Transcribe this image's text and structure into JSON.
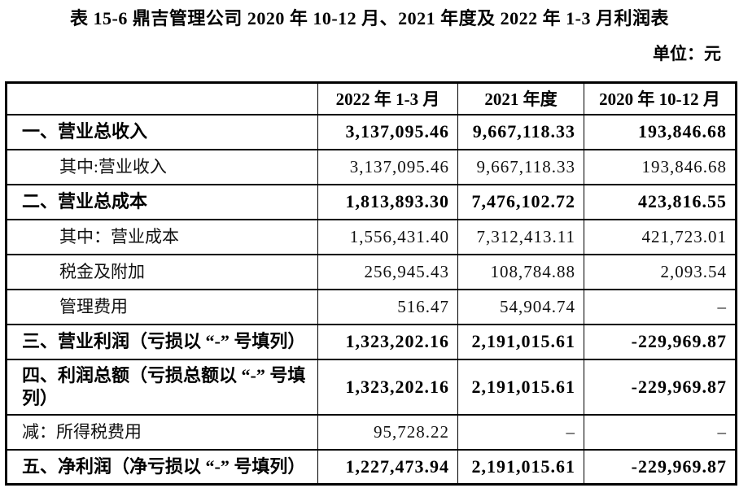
{
  "title": "表 15-6 鼎吉管理公司 2020 年 10-12 月、2021 年度及 2022 年 1-3 月利润表",
  "unit_label": "单位：元",
  "table": {
    "columns": [
      "",
      "2022 年 1-3 月",
      "2021 年度",
      "2020 年 10-12 月"
    ],
    "rows": [
      {
        "label": "一、营业总收入",
        "style": "section",
        "indent": false,
        "values": [
          "3,137,095.46",
          "9,667,118.33",
          "193,846.68"
        ]
      },
      {
        "label": "其中:营业收入",
        "style": "item",
        "indent": true,
        "values": [
          "3,137,095.46",
          "9,667,118.33",
          "193,846.68"
        ]
      },
      {
        "label": "二、营业总成本",
        "style": "section",
        "indent": false,
        "values": [
          "1,813,893.30",
          "7,476,102.72",
          "423,816.55"
        ]
      },
      {
        "label": "其中：营业成本",
        "style": "item",
        "indent": true,
        "values": [
          "1,556,431.40",
          "7,312,413.11",
          "421,723.01"
        ]
      },
      {
        "label": "税金及附加",
        "style": "item",
        "indent": true,
        "values": [
          "256,945.43",
          "108,784.88",
          "2,093.54"
        ]
      },
      {
        "label": "管理费用",
        "style": "item",
        "indent": true,
        "values": [
          "516.47",
          "54,904.74",
          "–"
        ]
      },
      {
        "label": "三、营业利润（亏损以 “-” 号填列）",
        "style": "section",
        "indent": false,
        "values": [
          "1,323,202.16",
          "2,191,015.61",
          "-229,969.87"
        ]
      },
      {
        "label": "四、利润总额（亏损总额以 “-” 号填列）",
        "style": "section",
        "indent": false,
        "values": [
          "1,323,202.16",
          "2,191,015.61",
          "-229,969.87"
        ]
      },
      {
        "label": "减：所得税费用",
        "style": "item",
        "indent": false,
        "values": [
          "95,728.22",
          "–",
          "–"
        ]
      },
      {
        "label": "五、净利润（净亏损以 “-” 号填列）",
        "style": "section",
        "indent": false,
        "values": [
          "1,227,473.94",
          "2,191,015.61",
          "-229,969.87"
        ]
      }
    ]
  }
}
